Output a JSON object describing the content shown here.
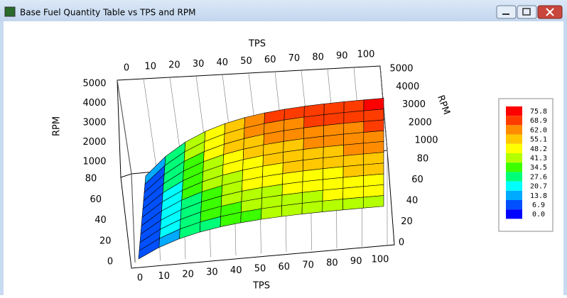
{
  "window": {
    "title": "Base Fuel Quantity Table vs TPS and RPM"
  },
  "plot": {
    "tps_label_top": "TPS",
    "tps_label_bottom": "TPS",
    "rpm_label_left": "RPM",
    "rpm_label_right": "RPM",
    "tps_ticks_top": [
      "0",
      "10",
      "20",
      "30",
      "40",
      "50",
      "60",
      "70",
      "80",
      "90",
      "100"
    ],
    "tps_ticks_bottom": [
      "0",
      "10",
      "20",
      "30",
      "40",
      "50",
      "60",
      "70",
      "80",
      "90",
      "100"
    ],
    "rpm_ticks_left": [
      "5000",
      "4000",
      "3000",
      "2000",
      "1000"
    ],
    "rpm_ticks_right": [
      "5000",
      "4000",
      "3000",
      "2000",
      "1000"
    ],
    "z_ticks_left": [
      "80",
      "60",
      "40",
      "20",
      "0"
    ],
    "z_ticks_right": [
      "80",
      "60",
      "40",
      "20",
      "0"
    ]
  },
  "legend": {
    "labels": [
      "75.8",
      "68.9",
      "62.0",
      "55.1",
      "48.2",
      "41.3",
      "34.5",
      "27.6",
      "20.7",
      "13.8",
      "6.9",
      "0.0"
    ],
    "colors": [
      "#ff0000",
      "#ff3c00",
      "#ff8c00",
      "#ffc800",
      "#ffff00",
      "#b4ff00",
      "#3cff00",
      "#00ff78",
      "#00ffff",
      "#00aaff",
      "#0050ff",
      "#0000ff"
    ]
  }
}
